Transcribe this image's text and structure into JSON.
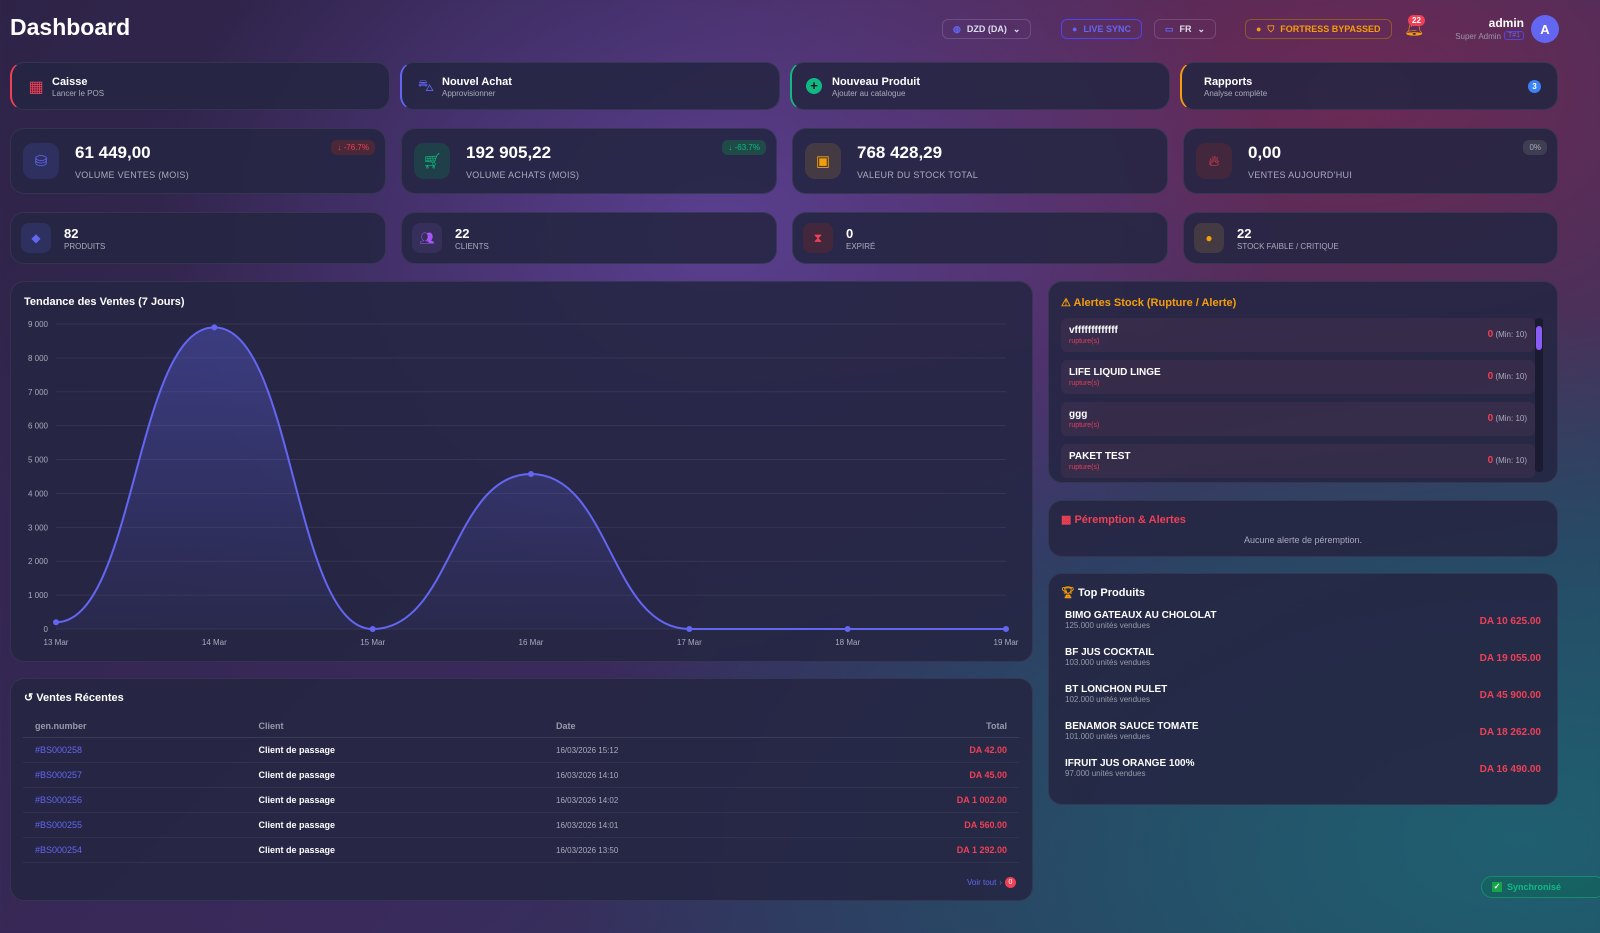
{
  "header": {
    "title": "Dashboard",
    "currency": "DZD (DA)",
    "live_sync": "LIVE SYNC",
    "language": "FR",
    "fortress": "FORTRESS BYPASSED",
    "notifications": "22",
    "user_name": "admin",
    "user_role": "Super Admin",
    "user_tag": "T#1",
    "avatar": "A"
  },
  "quick_actions": [
    {
      "title": "Caisse",
      "subtitle": "Lancer le POS",
      "icon": "cash-register-icon",
      "color": "#ef4056"
    },
    {
      "title": "Nouvel Achat",
      "subtitle": "Approvisionner",
      "icon": "basket-icon",
      "color": "#6366f1"
    },
    {
      "title": "Nouveau Produit",
      "subtitle": "Ajouter au catalogue",
      "icon": "plus-circle-icon",
      "color": "#10b981"
    },
    {
      "title": "Rapports",
      "subtitle": "Analyse complète",
      "icon": "chart-icon",
      "color": "#f59e0b",
      "badge": "3"
    }
  ],
  "stats": [
    {
      "value": "61 449,00",
      "label": "VOLUME VENTES (MOIS)",
      "badge": "↓ -76.7%",
      "icon": "coins-icon"
    },
    {
      "value": "192 905,22",
      "label": "VOLUME ACHATS (MOIS)",
      "badge": "↓ -63.7%",
      "icon": "cart-icon"
    },
    {
      "value": "768 428,29",
      "label": "VALEUR DU STOCK TOTAL",
      "icon": "boxes-icon"
    },
    {
      "value": "0,00",
      "label": "VENTES AUJOURD'HUI",
      "badge": "0%",
      "icon": "fire-icon"
    }
  ],
  "counters": [
    {
      "value": "82",
      "label": "PRODUITS",
      "icon": "tag-icon"
    },
    {
      "value": "22",
      "label": "CLIENTS",
      "icon": "users-icon"
    },
    {
      "value": "0",
      "label": "EXPIRÉ",
      "icon": "hourglass-icon"
    },
    {
      "value": "22",
      "label": "STOCK FAIBLE / CRITIQUE",
      "icon": "warning-circle-icon"
    }
  ],
  "chart_data": {
    "type": "area",
    "title": "Tendance des Ventes (7 Jours)",
    "categories": [
      "13 Mar",
      "14 Mar",
      "15 Mar",
      "16 Mar",
      "17 Mar",
      "18 Mar",
      "19 Mar"
    ],
    "values": [
      200,
      8900,
      0,
      4575,
      0,
      0,
      0
    ],
    "ylim": [
      0,
      9000
    ],
    "yticks": [
      "0",
      "1 000",
      "2 000",
      "3 000",
      "4 000",
      "5 000",
      "6 000",
      "7 000",
      "8 000",
      "9 000"
    ],
    "color": "#6366f1",
    "grid": true
  },
  "stock_alerts": {
    "title": "Alertes Stock (Rupture / Alerte)",
    "items": [
      {
        "name": "vfffffffffffff",
        "status": "rupture(s)",
        "qty": "0",
        "min": "(Min: 10)"
      },
      {
        "name": "LIFE LIQUID LINGE",
        "status": "rupture(s)",
        "qty": "0",
        "min": "(Min: 10)"
      },
      {
        "name": "ggg",
        "status": "rupture(s)",
        "qty": "0",
        "min": "(Min: 10)"
      },
      {
        "name": "PAKET TEST",
        "status": "rupture(s)",
        "qty": "0",
        "min": "(Min: 10)"
      }
    ]
  },
  "expiry": {
    "title": "Péremption & Alertes",
    "empty": "Aucune alerte de péremption."
  },
  "top_products": {
    "title": "Top Produits",
    "items": [
      {
        "name": "BIMO GATEAUX AU CHOLOLAT",
        "units": "125.000 unités vendues",
        "total": "DA 10 625.00"
      },
      {
        "name": "BF JUS COCKTAIL",
        "units": "103.000 unités vendues",
        "total": "DA 19 055.00"
      },
      {
        "name": "BT LONCHON PULET",
        "units": "102.000 unités vendues",
        "total": "DA 45 900.00"
      },
      {
        "name": "BENAMOR SAUCE TOMATE",
        "units": "101.000 unités vendues",
        "total": "DA 18 262.00"
      },
      {
        "name": "IFRUIT JUS ORANGE 100%",
        "units": "97.000 unités vendues",
        "total": "DA 16 490.00"
      }
    ]
  },
  "recent_sales": {
    "title": "Ventes Récentes",
    "columns": [
      "gen.number",
      "Client",
      "Date",
      "Total"
    ],
    "rows": [
      [
        "#BS000258",
        "Client de passage",
        "16/03/2026 15:12",
        "DA 42.00"
      ],
      [
        "#BS000257",
        "Client de passage",
        "16/03/2026 14:10",
        "DA 45.00"
      ],
      [
        "#BS000256",
        "Client de passage",
        "16/03/2026 14:02",
        "DA 1 002.00"
      ],
      [
        "#BS000255",
        "Client de passage",
        "16/03/2026 14:01",
        "DA 560.00"
      ],
      [
        "#BS000254",
        "Client de passage",
        "16/03/2026 13:50",
        "DA 1 292.00"
      ]
    ],
    "view_all": "Voir tout",
    "view_all_badge": "0"
  },
  "sync_status": "Synchronisé"
}
